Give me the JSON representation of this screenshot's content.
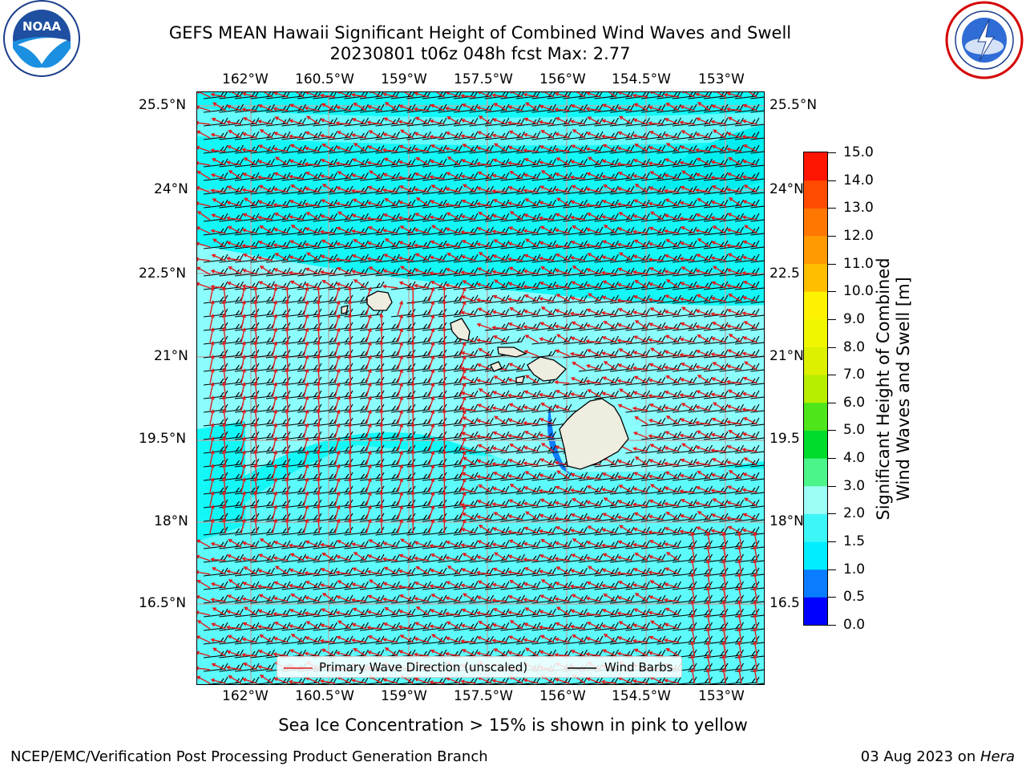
{
  "header": {
    "title_line1": "GEFS MEAN Hawaii Significant Height of Combined Wind Waves and Swell",
    "title_line2": "20230801 t06z 048h fcst   Max: 2.77"
  },
  "logos": {
    "left": {
      "name": "noaa-logo",
      "text": "NOAA",
      "ring_text": "NATIONAL OCEANIC AND ATMOSPHERIC ADMINISTRATION · U.S. DEPARTMENT OF COMMERCE"
    },
    "right": {
      "name": "nws-logo",
      "ring_text": "NATIONAL WEATHER SERVICE"
    }
  },
  "map": {
    "lon_labels": [
      "162°W",
      "160.5°W",
      "159°W",
      "157.5°W",
      "156°W",
      "154.5°W",
      "153°W"
    ],
    "lat_labels": [
      "25.5°N",
      "24°N",
      "22.5°N",
      "21°N",
      "19.5°N",
      "18°N",
      "16.5°N"
    ],
    "lat_labels_right": [
      "25.5°N",
      "24°N",
      "22.5",
      "21°N",
      "19.5",
      "18°N",
      "16.5"
    ],
    "legend": {
      "wave_label": "Primary Wave Direction (unscaled)",
      "barb_label": "Wind Barbs",
      "wave_color": "#e31a1c",
      "barb_color": "#000000"
    },
    "ocean_colors": {
      "base": "#13f7f7",
      "light": "#99fdfd",
      "dark": "#00eef0"
    }
  },
  "colorbar": {
    "title_line1": "Significant Height of Combined",
    "title_line2": "Wind Waves and Swell [m]",
    "labels": [
      "15.0",
      "14.0",
      "13.0",
      "12.0",
      "11.0",
      "10.0",
      "9.0",
      "8.0",
      "7.0",
      "6.0",
      "5.0",
      "4.0",
      "3.0",
      "2.0",
      "1.5",
      "1.0",
      "0.5",
      "0.0"
    ],
    "bins": [
      {
        "range": [
          0.0,
          0.5
        ],
        "color": "#0000ff"
      },
      {
        "range": [
          0.5,
          1.0
        ],
        "color": "#0a7cff"
      },
      {
        "range": [
          1.0,
          1.5
        ],
        "color": "#00eeff"
      },
      {
        "range": [
          1.5,
          2.0
        ],
        "color": "#3cf7f7"
      },
      {
        "range": [
          2.0,
          3.0
        ],
        "color": "#9dfdf7"
      },
      {
        "range": [
          3.0,
          4.0
        ],
        "color": "#4cf58a"
      },
      {
        "range": [
          4.0,
          5.0
        ],
        "color": "#00dc2c"
      },
      {
        "range": [
          5.0,
          6.0
        ],
        "color": "#4ee51a"
      },
      {
        "range": [
          6.0,
          7.0
        ],
        "color": "#b7ee00"
      },
      {
        "range": [
          7.0,
          8.0
        ],
        "color": "#dcf000"
      },
      {
        "range": [
          8.0,
          9.0
        ],
        "color": "#eef700"
      },
      {
        "range": [
          9.0,
          10.0
        ],
        "color": "#fff200"
      },
      {
        "range": [
          10.0,
          11.0
        ],
        "color": "#ffbf00"
      },
      {
        "range": [
          11.0,
          12.0
        ],
        "color": "#ff9b00"
      },
      {
        "range": [
          12.0,
          13.0
        ],
        "color": "#ff7700"
      },
      {
        "range": [
          13.0,
          14.0
        ],
        "color": "#ff4a00"
      },
      {
        "range": [
          14.0,
          15.0
        ],
        "color": "#ff1500"
      }
    ]
  },
  "caption": "Sea Ice Concentration > 15% is shown in pink to yellow",
  "footer": {
    "left": "NCEP/EMC/Verification Post Processing Product Generation Branch",
    "right_prefix": "03 Aug 2023 on ",
    "right_machine": "Hera"
  }
}
